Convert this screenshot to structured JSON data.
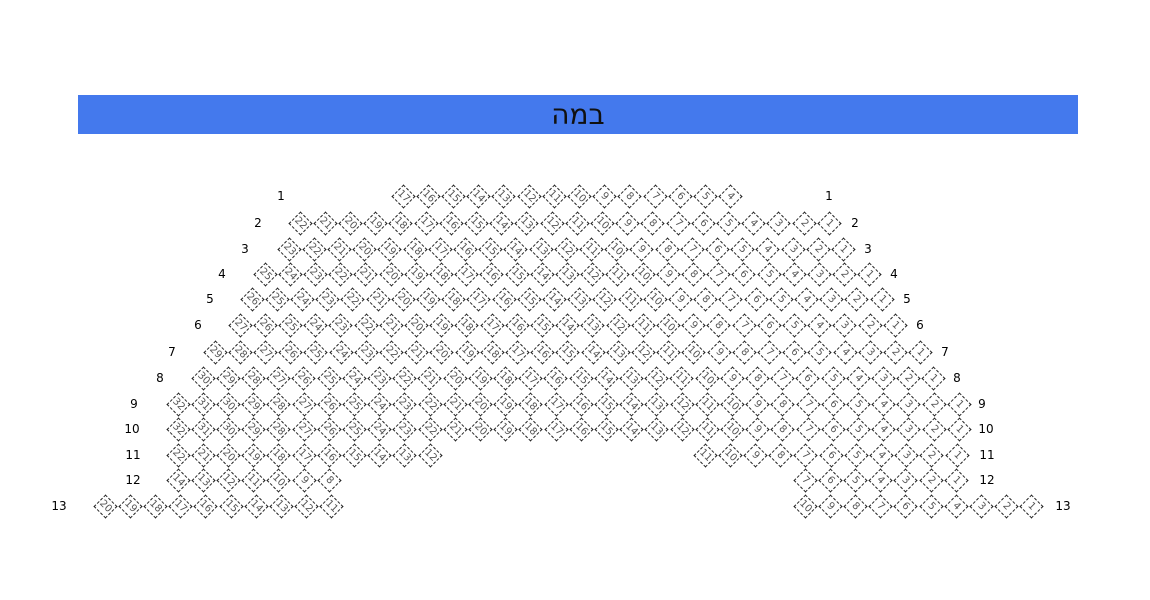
{
  "stage": {
    "label": "במה",
    "color": "#4479ed"
  },
  "rows": [
    {
      "label": "1",
      "groups": [
        [
          17,
          16,
          15,
          14,
          13,
          12,
          11,
          10,
          9,
          8,
          7,
          6,
          5,
          4
        ]
      ]
    },
    {
      "label": "2",
      "groups": [
        [
          22,
          21,
          20,
          19,
          18,
          17,
          16,
          15,
          14,
          13,
          12,
          11,
          10,
          9,
          8,
          7,
          6,
          5,
          4,
          3,
          2,
          1
        ]
      ]
    },
    {
      "label": "3",
      "groups": [
        [
          23,
          22,
          21,
          20,
          19,
          18,
          17,
          16,
          15,
          14,
          13,
          12,
          11,
          10,
          9,
          8,
          7,
          6,
          5,
          4,
          3,
          2,
          1
        ]
      ]
    },
    {
      "label": "4",
      "groups": [
        [
          25,
          24,
          23,
          22,
          21,
          20,
          19,
          18,
          17,
          16,
          15,
          14,
          13,
          12,
          11,
          10,
          9,
          8,
          7,
          6,
          5,
          4,
          3,
          2,
          1
        ]
      ]
    },
    {
      "label": "5",
      "groups": [
        [
          26,
          25,
          24,
          23,
          22,
          21,
          20,
          19,
          18,
          17,
          16,
          15,
          14,
          13,
          12,
          11,
          10,
          9,
          8,
          7,
          6,
          5,
          4,
          3,
          2,
          1
        ]
      ]
    },
    {
      "label": "6",
      "groups": [
        [
          27,
          26,
          25,
          24,
          23,
          22,
          21,
          20,
          19,
          18,
          17,
          16,
          15,
          14,
          13,
          12,
          11,
          10,
          9,
          8,
          7,
          6,
          5,
          4,
          3,
          2,
          1
        ]
      ]
    },
    {
      "label": "7",
      "groups": [
        [
          29,
          28,
          27,
          26,
          25,
          24,
          23,
          22,
          21,
          20,
          19,
          18,
          17,
          16,
          15,
          14,
          13,
          12,
          11,
          10,
          9,
          8,
          7,
          6,
          5,
          4,
          3,
          2,
          1
        ]
      ]
    },
    {
      "label": "8",
      "groups": [
        [
          30,
          29,
          28,
          27,
          26,
          25,
          24,
          23,
          22,
          21,
          20,
          19,
          18,
          17,
          16,
          15,
          14,
          13,
          12,
          11,
          10,
          9,
          8,
          7,
          6,
          5,
          4,
          3,
          2,
          1
        ]
      ]
    },
    {
      "label": "9",
      "groups": [
        [
          32,
          31,
          30,
          29,
          28,
          27,
          26,
          25,
          24,
          23,
          22,
          21,
          20,
          19,
          18,
          17,
          16,
          15,
          14,
          13,
          12,
          11,
          10,
          9,
          8,
          7,
          6,
          5,
          4,
          3,
          2,
          1
        ]
      ]
    },
    {
      "label": "10",
      "groups": [
        [
          32,
          31,
          30,
          29,
          28,
          27,
          26,
          25,
          24,
          23,
          22,
          21,
          20,
          19,
          18,
          17,
          16,
          15,
          14,
          13,
          12,
          11,
          10,
          9,
          8,
          7,
          6,
          5,
          4,
          3,
          2,
          1
        ]
      ]
    },
    {
      "label": "11",
      "groups": [
        [
          22,
          21,
          20,
          19,
          18,
          17,
          16,
          15,
          14,
          13,
          12
        ],
        [
          11,
          10,
          9,
          8,
          7,
          6,
          5,
          4,
          3,
          2,
          1
        ]
      ]
    },
    {
      "label": "12",
      "groups": [
        [
          14,
          13,
          12,
          11,
          10,
          9,
          8
        ],
        [
          7,
          6,
          5,
          4,
          3,
          2,
          1
        ]
      ]
    },
    {
      "label": "13",
      "groups": [
        [
          20,
          19,
          18,
          17,
          16,
          15,
          14,
          13,
          12,
          11
        ],
        [
          10,
          9,
          8,
          7,
          6,
          5,
          4,
          3,
          2,
          1
        ]
      ]
    }
  ]
}
